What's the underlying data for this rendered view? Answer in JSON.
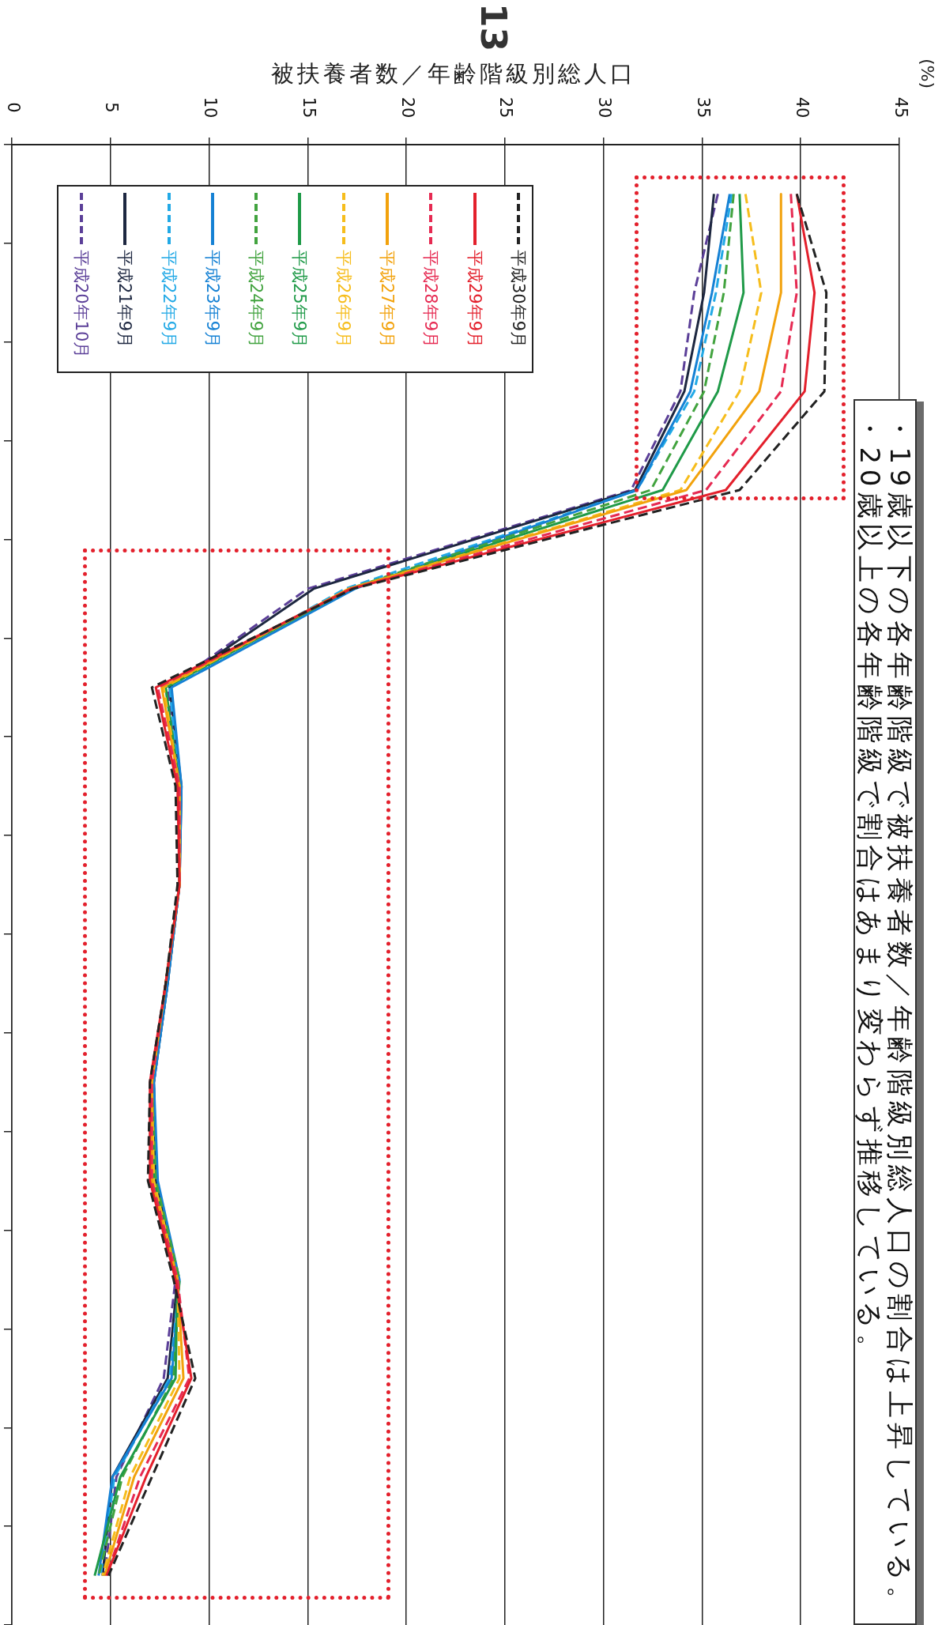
{
  "chart_data": {
    "type": "line",
    "orientation": "horizontal",
    "xlabel": "被扶養者数／年齢階級別総人口",
    "categories": [
      null,
      null,
      null,
      null,
      null,
      null,
      null,
      null,
      null,
      null,
      null,
      null,
      null,
      null,
      null
    ],
    "series": [
      {
        "name": "平成30年9月",
        "color": "#222222",
        "line_style": "dashed",
        "values": [
          39.8,
          41.3,
          41.2,
          36.9,
          17.3,
          7.1,
          8.3,
          8.4,
          7.8,
          7.0,
          6.9,
          8.2,
          9.3,
          7.1,
          4.9
        ]
      },
      {
        "name": "平成29年9月",
        "color": "#e3202c",
        "line_style": "solid",
        "values": [
          39.8,
          40.7,
          40.2,
          36.2,
          17.2,
          7.3,
          8.4,
          8.5,
          7.8,
          7.0,
          7.0,
          8.3,
          9.1,
          6.8,
          4.8
        ]
      },
      {
        "name": "平成28年9月",
        "color": "#e62a52",
        "line_style": "dashed",
        "values": [
          39.5,
          39.8,
          39.0,
          35.2,
          17.2,
          7.4,
          8.5,
          8.5,
          7.8,
          7.1,
          7.1,
          8.4,
          9.0,
          6.5,
          4.8
        ]
      },
      {
        "name": "平成27年9月",
        "color": "#f2a20c",
        "line_style": "solid",
        "values": [
          39.0,
          39.0,
          37.9,
          34.2,
          17.1,
          7.6,
          8.5,
          8.5,
          7.8,
          7.1,
          7.1,
          8.4,
          8.7,
          6.2,
          4.7
        ]
      },
      {
        "name": "平成26年9月",
        "color": "#f6bd1c",
        "line_style": "dashed",
        "values": [
          37.2,
          38.0,
          36.9,
          33.9,
          17.1,
          7.7,
          8.5,
          8.5,
          7.8,
          7.1,
          7.2,
          8.4,
          8.5,
          6.0,
          4.6
        ]
      },
      {
        "name": "平成25年9月",
        "color": "#1f9a48",
        "line_style": "solid",
        "values": [
          36.9,
          37.1,
          35.8,
          33.0,
          17.2,
          7.8,
          8.5,
          8.5,
          7.8,
          7.1,
          7.2,
          8.4,
          8.3,
          5.5,
          4.2
        ]
      },
      {
        "name": "平成24年9月",
        "color": "#42a33f",
        "line_style": "dashed",
        "values": [
          36.6,
          36.1,
          35.1,
          32.4,
          17.1,
          7.8,
          8.5,
          8.5,
          7.8,
          7.1,
          7.3,
          8.5,
          8.2,
          5.6,
          4.4
        ]
      },
      {
        "name": "平成23年9月",
        "color": "#1581d4",
        "line_style": "solid",
        "values": [
          36.4,
          35.5,
          34.4,
          31.7,
          17.4,
          8.1,
          8.6,
          8.5,
          7.9,
          7.2,
          7.4,
          8.5,
          8.1,
          5.1,
          4.4
        ]
      },
      {
        "name": "平成22年9月",
        "color": "#22a9e6",
        "line_style": "dashed",
        "values": [
          36.5,
          35.7,
          34.6,
          31.7,
          16.9,
          8.0,
          8.5,
          8.5,
          7.9,
          7.2,
          7.3,
          8.5,
          8.0,
          5.2,
          4.5
        ]
      },
      {
        "name": "平成21年9月",
        "color": "#1d2740",
        "line_style": "solid",
        "values": [
          35.6,
          35.1,
          34.1,
          31.6,
          15.3,
          8.0,
          8.6,
          8.5,
          7.9,
          7.2,
          7.3,
          8.4,
          7.9,
          5.1,
          4.6
        ]
      },
      {
        "name": "平成20年10月",
        "color": "#5b3f98",
        "line_style": "dashed",
        "values": [
          35.8,
          34.6,
          33.9,
          31.4,
          15.0,
          7.9,
          8.5,
          8.5,
          7.9,
          7.2,
          7.3,
          8.3,
          7.7,
          5.3,
          4.7
        ]
      }
    ],
    "xlim": [
      0,
      45
    ],
    "xticks": [
      0,
      5,
      10,
      15,
      20,
      25,
      30,
      35,
      40,
      45
    ],
    "grid": "x",
    "legend": "top left",
    "tick_labels": "x",
    "annotations": [
      "13",
      "(%)",
      "・19歳以下の各年齢階級で被扶養者数／年齢階級別総人口の割合は上昇している。",
      "・20歳以上の各年齢階級で割合はあまり変わらず推移している。"
    ]
  }
}
